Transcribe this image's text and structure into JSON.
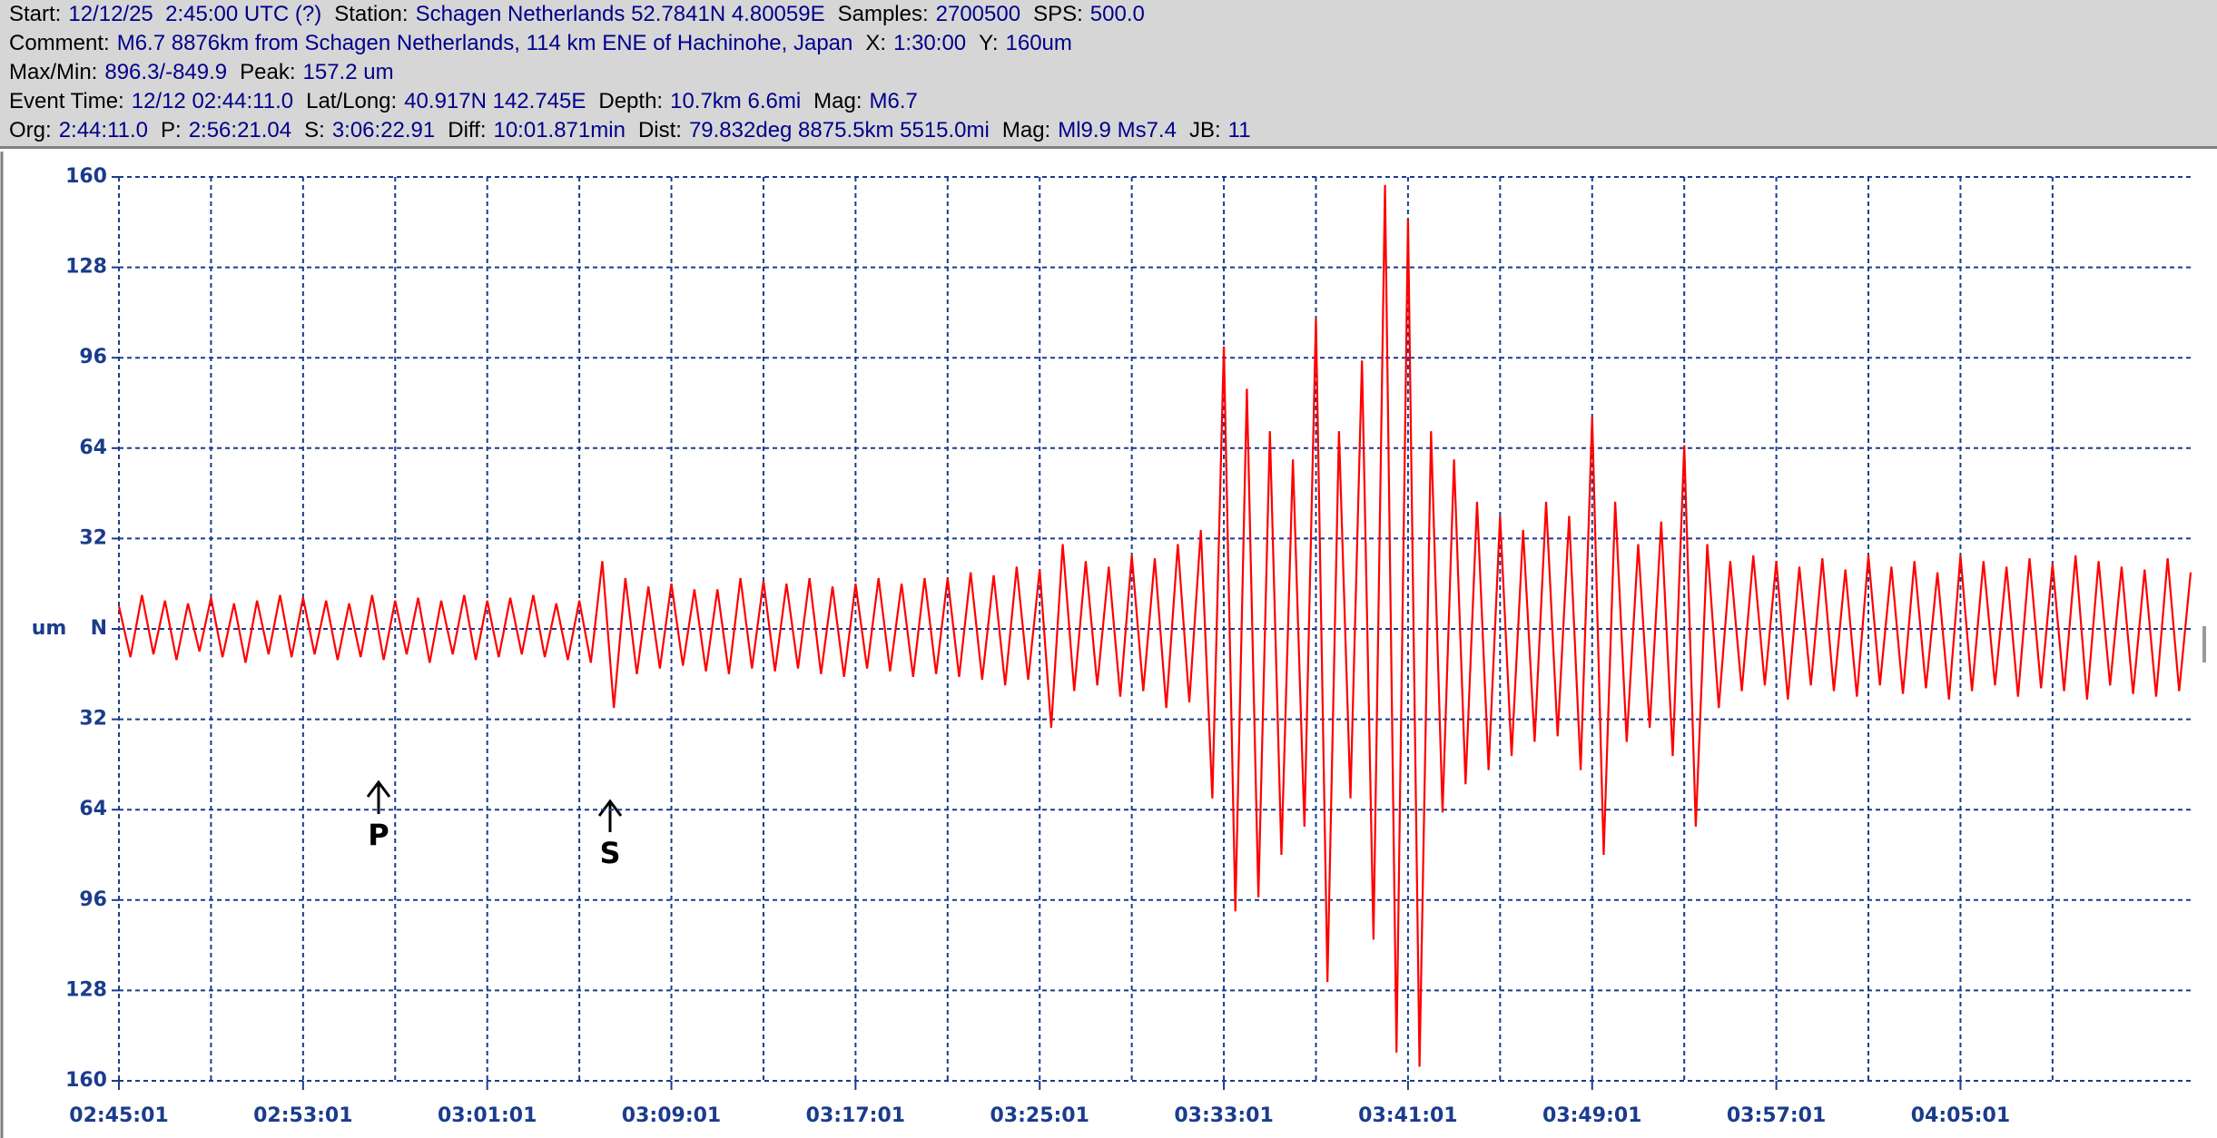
{
  "header": {
    "lines": [
      [
        {
          "label": "Start:",
          "value": "12/12/25  2:45:00 UTC (?)"
        },
        {
          "label": "Station:",
          "value": "Schagen Netherlands 52.7841N 4.80059E"
        },
        {
          "label": "Samples:",
          "value": "2700500"
        },
        {
          "label": "SPS:",
          "value": "500.0"
        }
      ],
      [
        {
          "label": "Comment:",
          "value": "M6.7 8876km from Schagen Netherlands, 114 km ENE of Hachinohe, Japan"
        },
        {
          "label": "X:",
          "value": "1:30:00"
        },
        {
          "label": "Y:",
          "value": "160um"
        }
      ],
      [
        {
          "label": "Max/Min:",
          "value": "896.3/-849.9"
        },
        {
          "label": "Peak:",
          "value": "157.2 um"
        }
      ],
      [
        {
          "label": "Event Time:",
          "value": "12/12 02:44:11.0"
        },
        {
          "label": "Lat/Long:",
          "value": "40.917N 142.745E"
        },
        {
          "label": "Depth:",
          "value": "10.7km 6.6mi"
        },
        {
          "label": "Mag:",
          "value": "M6.7"
        }
      ],
      [
        {
          "label": "Org:",
          "value": "2:44:11.0"
        },
        {
          "label": "P:",
          "value": "2:56:21.04"
        },
        {
          "label": "S:",
          "value": "3:06:22.91"
        },
        {
          "label": "Diff:",
          "value": "10:01.871min"
        },
        {
          "label": "Dist:",
          "value": "79.832deg 8875.5km 5515.0mi"
        },
        {
          "label": "Mag:",
          "value": "Ml9.9 Ms7.4"
        },
        {
          "label": "JB:",
          "value": "11"
        }
      ]
    ]
  },
  "chart_data": {
    "type": "line",
    "ylabel": "um",
    "annotations": [
      "P",
      "S"
    ],
    "xlim": [
      0,
      90
    ],
    "ylim": [
      -160,
      160
    ],
    "grid": true,
    "xticks": [
      {
        "value": 0,
        "label": "02:45:01"
      },
      {
        "value": 8,
        "label": "02:53:01"
      },
      {
        "value": 16,
        "label": "03:01:01"
      },
      {
        "value": 24,
        "label": "03:09:01"
      },
      {
        "value": 32,
        "label": "03:17:01"
      },
      {
        "value": 40,
        "label": "03:25:01"
      },
      {
        "value": 48,
        "label": "03:33:01"
      },
      {
        "value": 56,
        "label": "03:41:01"
      },
      {
        "value": 64,
        "label": "03:49:01"
      },
      {
        "value": 72,
        "label": "03:57:01"
      },
      {
        "value": 80,
        "label": "04:05:01"
      }
    ],
    "yticks": [
      160,
      128,
      96,
      64,
      32,
      {
        "value": 0,
        "label": "N"
      },
      {
        "value": -32,
        "label": "32"
      },
      {
        "value": -64,
        "label": "64"
      },
      {
        "value": -96,
        "label": "96"
      },
      {
        "value": -128,
        "label": "128"
      },
      {
        "value": -160,
        "label": "160"
      }
    ],
    "x": [
      0,
      0.5,
      1,
      1.5,
      2,
      2.5,
      3,
      3.5,
      4,
      4.5,
      5,
      5.5,
      6,
      6.5,
      7,
      7.5,
      8,
      8.5,
      9,
      9.5,
      10,
      10.5,
      11,
      11.5,
      12,
      12.5,
      13,
      13.5,
      14,
      14.5,
      15,
      15.5,
      16,
      16.5,
      17,
      17.5,
      18,
      18.5,
      19,
      19.5,
      20,
      20.5,
      21,
      21.5,
      22,
      22.5,
      23,
      23.5,
      24,
      24.5,
      25,
      25.5,
      26,
      26.5,
      27,
      27.5,
      28,
      28.5,
      29,
      29.5,
      30,
      30.5,
      31,
      31.5,
      32,
      32.5,
      33,
      33.5,
      34,
      34.5,
      35,
      35.5,
      36,
      36.5,
      37,
      37.5,
      38,
      38.5,
      39,
      39.5,
      40,
      40.5,
      41,
      41.5,
      42,
      42.5,
      43,
      43.5,
      44,
      44.5,
      45,
      45.5,
      46,
      46.5,
      47,
      47.5,
      48,
      48.5,
      49,
      49.5,
      50,
      50.5,
      51,
      51.5,
      52,
      52.5,
      53,
      53.5,
      54,
      54.5,
      55,
      55.5,
      56,
      56.5,
      57,
      57.5,
      58,
      58.5,
      59,
      59.5,
      60,
      60.5,
      61,
      61.5,
      62,
      62.5,
      63,
      63.5,
      64,
      64.5,
      65,
      65.5,
      66,
      66.5,
      67,
      67.5,
      68,
      68.5,
      69,
      69.5,
      70,
      70.5,
      71,
      71.5,
      72,
      72.5,
      73,
      73.5,
      74,
      74.5,
      75,
      75.5,
      76,
      76.5,
      77,
      77.5,
      78,
      78.5,
      79,
      79.5,
      80,
      80.5,
      81,
      81.5,
      82,
      82.5,
      83,
      83.5,
      84,
      84.5,
      85,
      85.5,
      86,
      86.5,
      87,
      87.5,
      88,
      88.5,
      89,
      89.5,
      90
    ],
    "series": [
      {
        "color": "#ff0000",
        "values": [
          8,
          -10,
          12,
          -9,
          10,
          -11,
          9,
          -8,
          11,
          -10,
          9,
          -12,
          10,
          -9,
          12,
          -10,
          11,
          -9,
          10,
          -11,
          9,
          -10,
          12,
          -11,
          10,
          -9,
          11,
          -12,
          10,
          -9,
          12,
          -11,
          10,
          -10,
          11,
          -9,
          12,
          -10,
          9,
          -11,
          10,
          -12,
          24,
          -28,
          18,
          -16,
          15,
          -14,
          16,
          -13,
          14,
          -15,
          14,
          -16,
          18,
          -14,
          17,
          -15,
          16,
          -14,
          18,
          -16,
          15,
          -17,
          16,
          -14,
          18,
          -15,
          16,
          -17,
          18,
          -16,
          18,
          -17,
          20,
          -18,
          19,
          -20,
          22,
          -18,
          21,
          -35,
          30,
          -22,
          24,
          -20,
          22,
          -24,
          26,
          -22,
          25,
          -28,
          30,
          -26,
          35,
          -60,
          100,
          -100,
          85,
          -95,
          70,
          -80,
          60,
          -70,
          110,
          -125,
          70,
          -60,
          95,
          -110,
          157.2,
          -150,
          145,
          -155,
          70,
          -65,
          60,
          -55,
          45,
          -50,
          40,
          -45,
          35,
          -40,
          45,
          -38,
          40,
          -50,
          75,
          -80,
          45,
          -40,
          30,
          -35,
          38,
          -45,
          65,
          -70,
          30,
          -28,
          24,
          -22,
          26,
          -20,
          24,
          -25,
          22,
          -20,
          25,
          -22,
          21,
          -24,
          26,
          -20,
          22,
          -23,
          24,
          -21,
          20,
          -25,
          26,
          -22,
          24,
          -20,
          22,
          -24,
          25,
          -21,
          23,
          -22,
          26,
          -25,
          24,
          -20,
          22,
          -23,
          21,
          -24,
          25,
          -22,
          20
        ]
      }
    ]
  }
}
